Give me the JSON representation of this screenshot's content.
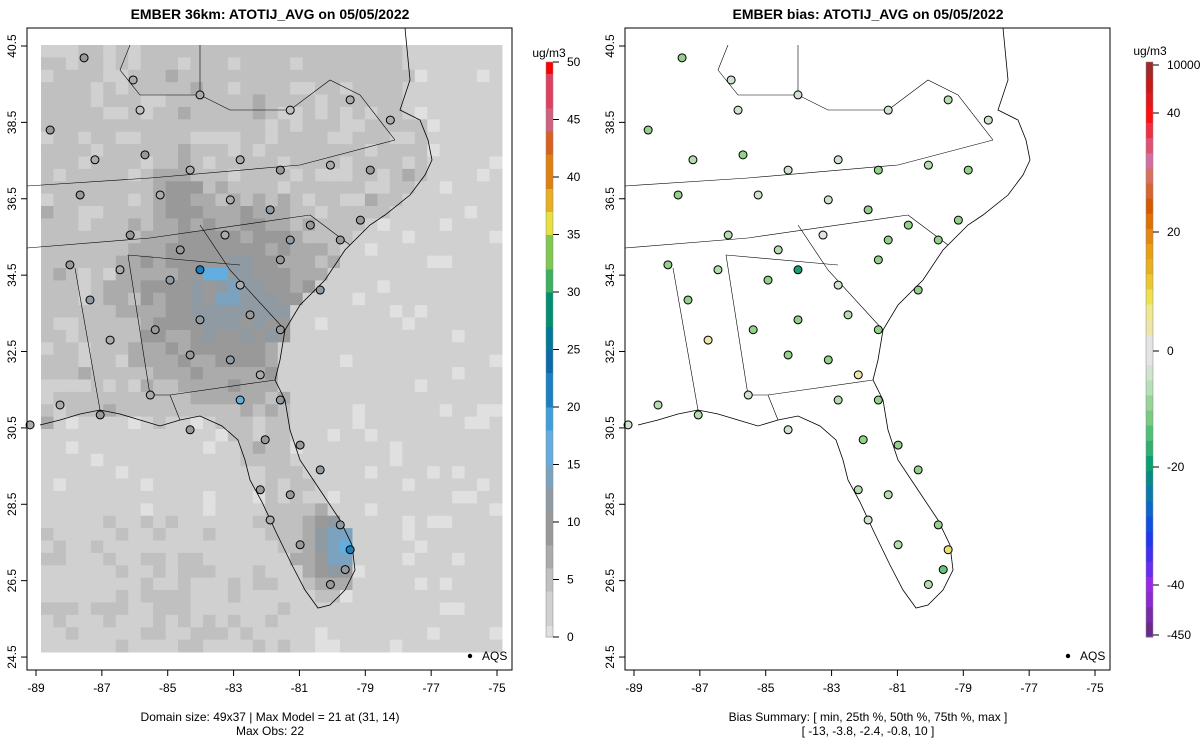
{
  "chart_data": [
    {
      "type": "heatmap",
      "title": "EMBER 36km: ATOTIJ_AVG on 05/05/2022",
      "units": "ug/m3",
      "colorbar_ticks": [
        "0",
        "5",
        "10",
        "15",
        "20",
        "25",
        "30",
        "35",
        "40",
        "45",
        "50"
      ],
      "zlim": [
        0,
        50
      ],
      "xlim": [
        -89,
        -75
      ],
      "ylim": [
        24.5,
        40.5
      ],
      "x_ticks": [
        "-89",
        "-87",
        "-85",
        "-83",
        "-81",
        "-79",
        "-77",
        "-75"
      ],
      "y_ticks": [
        "24.5",
        "26.5",
        "28.5",
        "30.5",
        "32.5",
        "34.5",
        "36.5",
        "38.5",
        "40.5"
      ],
      "legend": "AQS",
      "legend_position": "bottom-right",
      "footer_line1": "Domain size: 49x37 | Max Model = 21 at (31, 14)",
      "footer_line2": "Max Obs: 22",
      "domain_size": [
        49,
        37
      ],
      "max_model": 21,
      "max_obs": 22
    },
    {
      "type": "scatter",
      "title": "EMBER bias: ATOTIJ_AVG on 05/05/2022",
      "units": "ug/m3",
      "colorbar_ticks": [
        "10000",
        "40",
        "20",
        "0",
        "-20",
        "-40",
        "-450"
      ],
      "xlim": [
        -89,
        -75
      ],
      "ylim": [
        24.5,
        40.5
      ],
      "x_ticks": [
        "-89",
        "-87",
        "-85",
        "-83",
        "-81",
        "-79",
        "-77",
        "-75"
      ],
      "y_ticks": [
        "24.5",
        "26.5",
        "28.5",
        "30.5",
        "32.5",
        "34.5",
        "36.5",
        "38.5",
        "40.5"
      ],
      "legend": "AQS",
      "legend_position": "bottom-right",
      "footer_line1": "Bias Summary: [ min, 25th %, 50th %, 75th %, max ]",
      "footer_line2": "[ -13,   -3.8,   -2.4,   -0.8,   10 ]",
      "bias_summary": {
        "min": -13,
        "p25": -3.8,
        "p50": -2.4,
        "p75": -0.8,
        "max": 10
      }
    }
  ],
  "sites": [
    {
      "lon": -87.54,
      "lat": 40.19,
      "obs": 10,
      "bias": -4
    },
    {
      "lon": -86.05,
      "lat": 39.61,
      "obs": 6,
      "bias": -2
    },
    {
      "lon": -85.84,
      "lat": 38.82,
      "obs": 5,
      "bias": -1
    },
    {
      "lon": -84.02,
      "lat": 39.22,
      "obs": 6,
      "bias": -2
    },
    {
      "lon": -81.28,
      "lat": 38.82,
      "obs": 5,
      "bias": -1
    },
    {
      "lon": -79.46,
      "lat": 39.09,
      "obs": 7,
      "bias": -3
    },
    {
      "lon": -78.24,
      "lat": 38.56,
      "obs": 6,
      "bias": -2
    },
    {
      "lon": -88.57,
      "lat": 38.3,
      "obs": 9,
      "bias": -4
    },
    {
      "lon": -87.21,
      "lat": 37.52,
      "obs": 8,
      "bias": -3
    },
    {
      "lon": -85.69,
      "lat": 37.65,
      "obs": 9,
      "bias": -4
    },
    {
      "lon": -84.32,
      "lat": 37.25,
      "obs": 6,
      "bias": -2
    },
    {
      "lon": -82.8,
      "lat": 37.52,
      "obs": 7,
      "bias": -2
    },
    {
      "lon": -81.58,
      "lat": 37.25,
      "obs": 10,
      "bias": -5
    },
    {
      "lon": -80.06,
      "lat": 37.38,
      "obs": 8,
      "bias": -3
    },
    {
      "lon": -78.85,
      "lat": 37.25,
      "obs": 9,
      "bias": -4
    },
    {
      "lon": -87.66,
      "lat": 36.6,
      "obs": 10,
      "bias": -4
    },
    {
      "lon": -85.23,
      "lat": 36.6,
      "obs": 7,
      "bias": -2
    },
    {
      "lon": -83.1,
      "lat": 36.47,
      "obs": 6,
      "bias": -1
    },
    {
      "lon": -81.89,
      "lat": 36.21,
      "obs": 11,
      "bias": -5
    },
    {
      "lon": -80.67,
      "lat": 35.81,
      "obs": 9,
      "bias": -4
    },
    {
      "lon": -79.15,
      "lat": 35.94,
      "obs": 10,
      "bias": -4
    },
    {
      "lon": -86.14,
      "lat": 35.55,
      "obs": 10,
      "bias": -3
    },
    {
      "lon": -84.62,
      "lat": 35.16,
      "obs": 9,
      "bias": -3
    },
    {
      "lon": -83.26,
      "lat": 35.55,
      "obs": 6,
      "bias": 0
    },
    {
      "lon": -81.28,
      "lat": 35.42,
      "obs": 11,
      "bias": -5
    },
    {
      "lon": -79.76,
      "lat": 35.42,
      "obs": 10,
      "bias": -4
    },
    {
      "lon": -87.97,
      "lat": 34.77,
      "obs": 9,
      "bias": -4
    },
    {
      "lon": -86.45,
      "lat": 34.64,
      "obs": 8,
      "bias": -3
    },
    {
      "lon": -84.93,
      "lat": 34.37,
      "obs": 11,
      "bias": -4
    },
    {
      "lon": -84.02,
      "lat": 34.64,
      "obs": 21,
      "bias": -13
    },
    {
      "lon": -82.8,
      "lat": 34.24,
      "obs": 7,
      "bias": -1
    },
    {
      "lon": -81.58,
      "lat": 34.9,
      "obs": 10,
      "bias": -4
    },
    {
      "lon": -80.37,
      "lat": 34.11,
      "obs": 11,
      "bias": -5
    },
    {
      "lon": -87.36,
      "lat": 33.85,
      "obs": 11,
      "bias": -4
    },
    {
      "lon": -85.38,
      "lat": 33.07,
      "obs": 10,
      "bias": -4
    },
    {
      "lon": -84.02,
      "lat": 33.33,
      "obs": 12,
      "bias": -5
    },
    {
      "lon": -82.5,
      "lat": 33.46,
      "obs": 9,
      "bias": -3
    },
    {
      "lon": -81.58,
      "lat": 33.07,
      "obs": 10,
      "bias": -4
    },
    {
      "lon": -86.75,
      "lat": 32.8,
      "obs": 7,
      "bias": 4
    },
    {
      "lon": -84.32,
      "lat": 32.41,
      "obs": 10,
      "bias": -4
    },
    {
      "lon": -83.1,
      "lat": 32.28,
      "obs": 11,
      "bias": -4
    },
    {
      "lon": -82.19,
      "lat": 31.89,
      "obs": 8,
      "bias": 2
    },
    {
      "lon": -88.27,
      "lat": 31.1,
      "obs": 8,
      "bias": -3
    },
    {
      "lon": -85.53,
      "lat": 31.36,
      "obs": 7,
      "bias": -2
    },
    {
      "lon": -82.8,
      "lat": 31.23,
      "obs": 16,
      "bias": -3
    },
    {
      "lon": -81.58,
      "lat": 31.23,
      "obs": 11,
      "bias": -4
    },
    {
      "lon": -87.05,
      "lat": 30.84,
      "obs": 9,
      "bias": -3
    },
    {
      "lon": -89.18,
      "lat": 30.58,
      "obs": 6,
      "bias": -2
    },
    {
      "lon": -84.32,
      "lat": 30.45,
      "obs": 9,
      "bias": -2
    },
    {
      "lon": -82.04,
      "lat": 30.19,
      "obs": 10,
      "bias": -4
    },
    {
      "lon": -80.98,
      "lat": 30.05,
      "obs": 9,
      "bias": -4
    },
    {
      "lon": -82.19,
      "lat": 28.88,
      "obs": 9,
      "bias": -3
    },
    {
      "lon": -81.28,
      "lat": 28.75,
      "obs": 9,
      "bias": -3
    },
    {
      "lon": -80.37,
      "lat": 29.4,
      "obs": 11,
      "bias": -4
    },
    {
      "lon": -81.89,
      "lat": 28.09,
      "obs": 8,
      "bias": -2
    },
    {
      "lon": -80.98,
      "lat": 27.44,
      "obs": 9,
      "bias": -3
    },
    {
      "lon": -79.76,
      "lat": 27.96,
      "obs": 12,
      "bias": -5
    },
    {
      "lon": -79.46,
      "lat": 27.31,
      "obs": 22,
      "bias": 10
    },
    {
      "lon": -79.61,
      "lat": 26.79,
      "obs": 12,
      "bias": -6
    },
    {
      "lon": -80.06,
      "lat": 26.4,
      "obs": 10,
      "bias": -3
    }
  ]
}
